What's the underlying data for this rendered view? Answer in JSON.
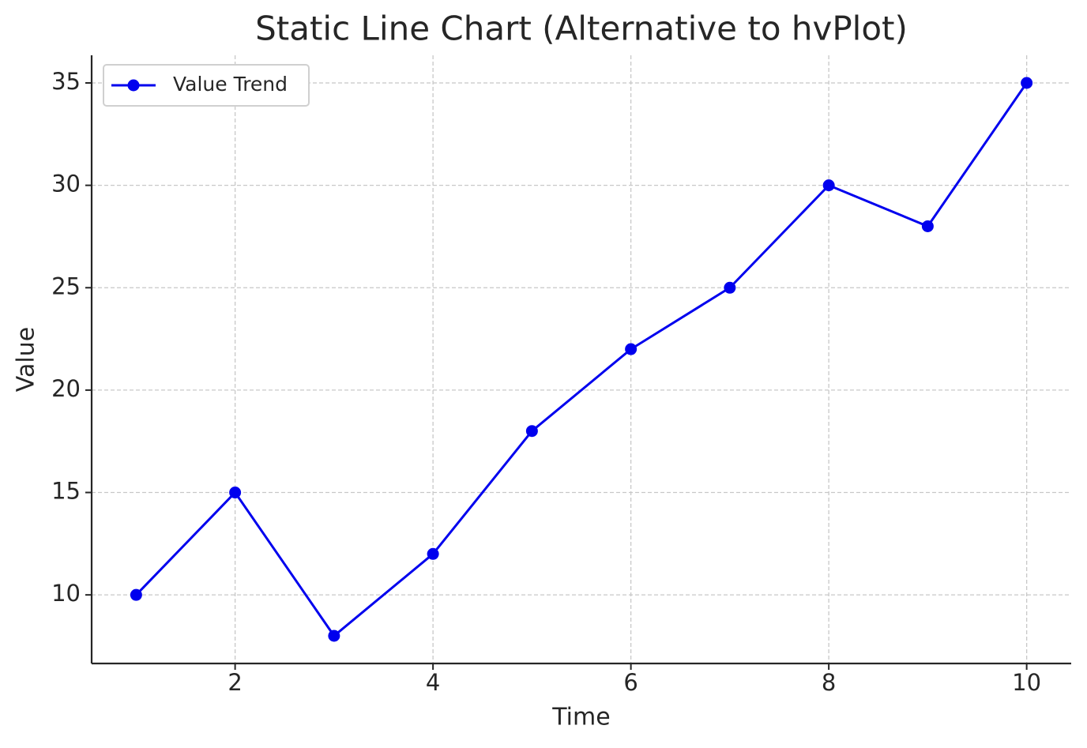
{
  "chart_data": {
    "type": "line",
    "title": "Static Line Chart (Alternative to hvPlot)",
    "x_label": "Time",
    "y_label": "Value",
    "x": [
      1,
      2,
      3,
      4,
      5,
      6,
      7,
      8,
      9,
      10
    ],
    "series": [
      {
        "name": "Value Trend",
        "color": "#0000ee",
        "values": [
          10,
          15,
          8,
          12,
          18,
          22,
          25,
          30,
          28,
          35
        ]
      }
    ],
    "xlim": [
      0.55,
      10.45
    ],
    "xticks": [
      2,
      4,
      6,
      8,
      10
    ],
    "ylim": [
      6.65,
      36.35
    ],
    "yticks": [
      10,
      15,
      20,
      25,
      30,
      35
    ],
    "grid": true,
    "legend": "upper-left"
  }
}
